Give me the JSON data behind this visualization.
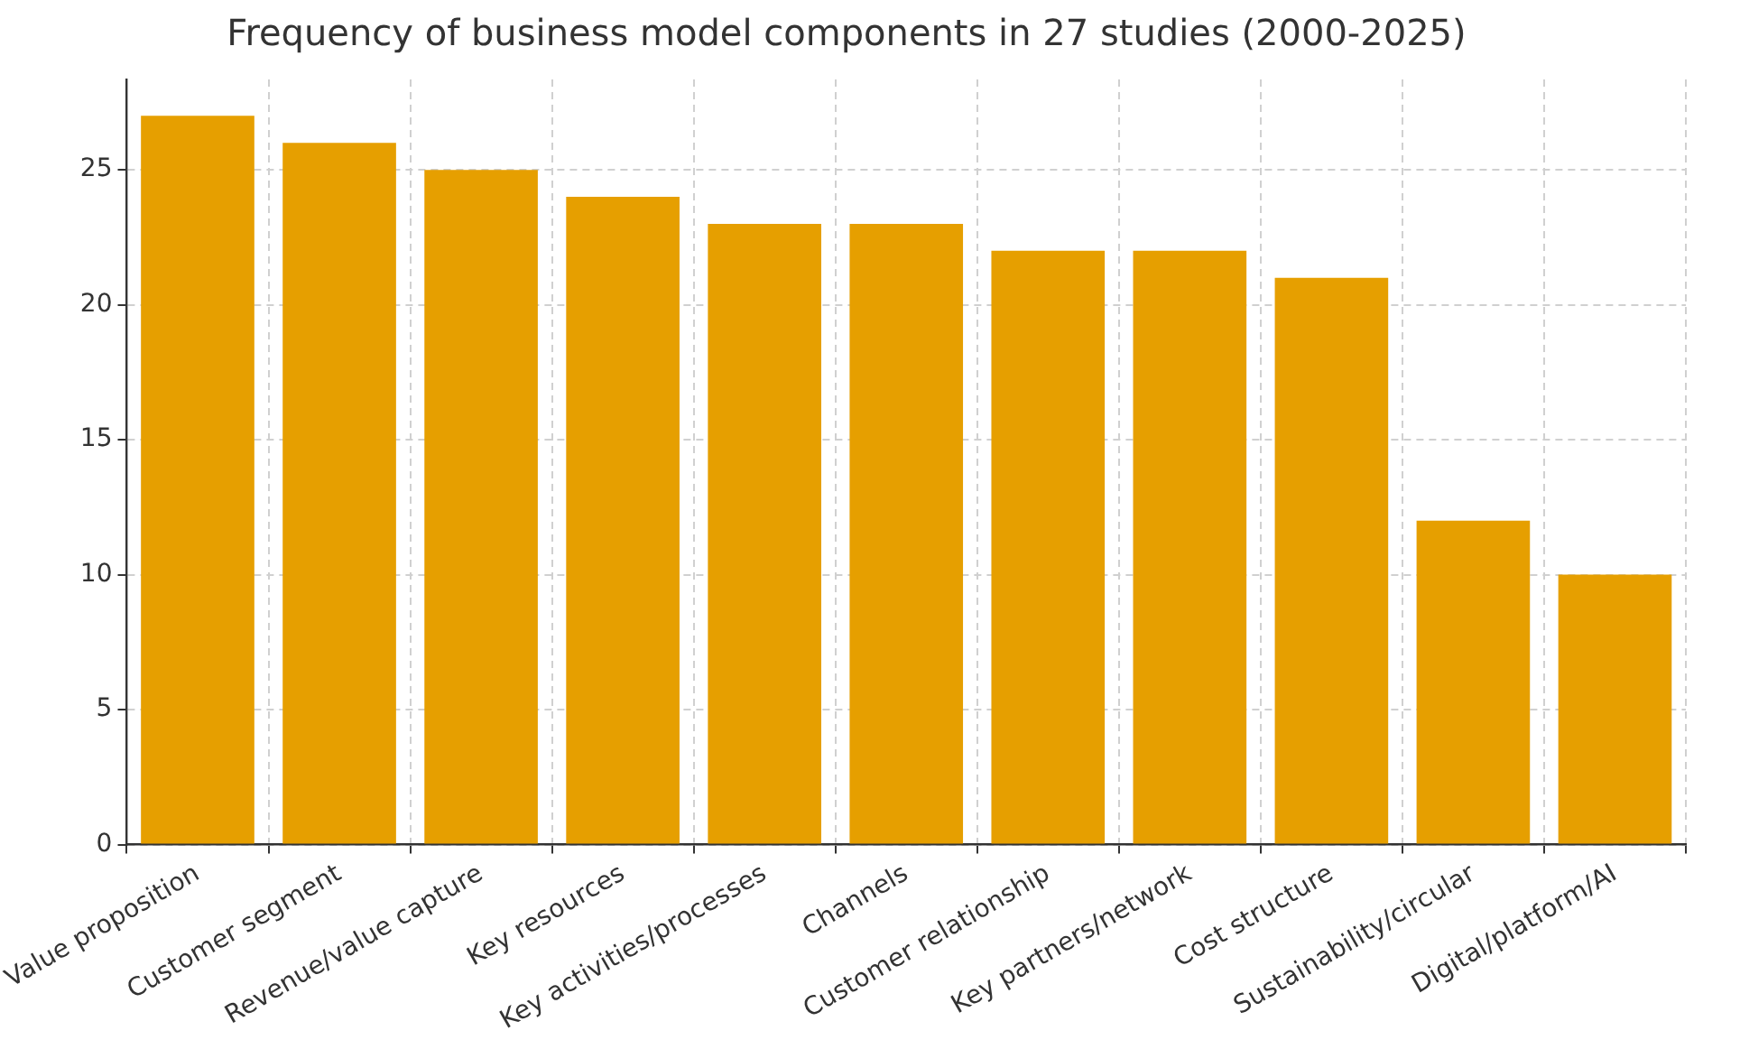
{
  "chart_data": {
    "type": "bar",
    "title": "Frequency of business model components in 27 studies (2000-2025)",
    "categories": [
      "Value proposition",
      "Customer segment",
      "Revenue/value capture",
      "Key resources",
      "Key activities/processes",
      "Channels",
      "Customer relationship",
      "Key partners/network",
      "Cost structure",
      "Sustainability/circular",
      "Digital/platform/AI"
    ],
    "values": [
      27,
      26,
      25,
      24,
      23,
      23,
      22,
      22,
      21,
      12,
      10
    ],
    "color": "#e69f00",
    "ylim": [
      0,
      28.35
    ],
    "yticks": [
      0,
      5,
      10,
      15,
      20,
      25
    ],
    "grid": true
  }
}
